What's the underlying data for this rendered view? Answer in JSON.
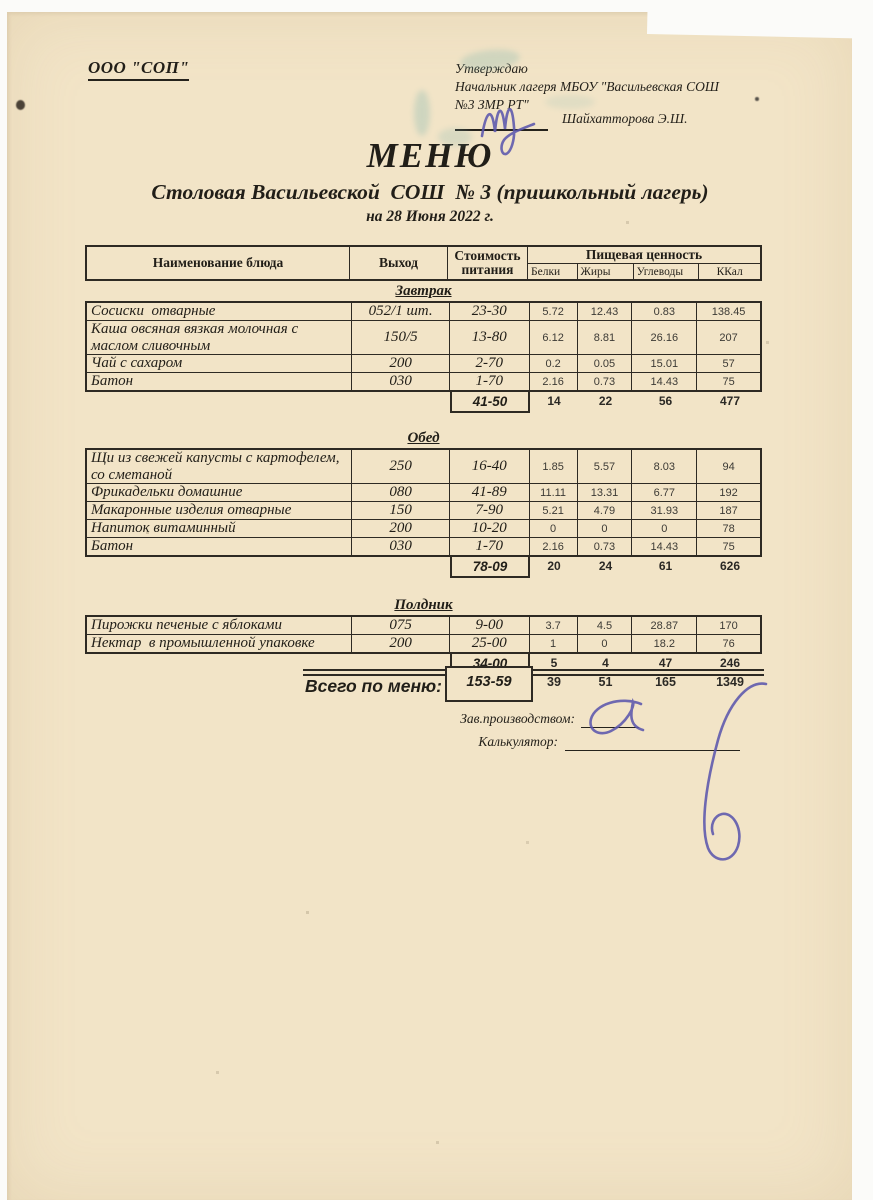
{
  "document": {
    "org_name": "ООО \"СОП\"",
    "approval": {
      "approve_word": "Утверждаю",
      "approver_line1": "Начальник лагеря МБОУ \"Васильевская СОШ",
      "approver_line2": "№3 ЗМР РТ\"",
      "approver_name": "Шайхатторова Э.Ш."
    },
    "title": "МЕНЮ",
    "subtitle": "Столовая Васильевской  СОШ  № 3 (пришкольный лагерь)",
    "date_line": "на 28 Июня 2022 г.",
    "footer": {
      "production_manager_label": "Зав.производством:",
      "calculator_label": "Калькулятор:"
    }
  },
  "menu_table": {
    "columns": {
      "dish": "Наименование блюда",
      "output": "Выход",
      "cost_line1": "Стоимость",
      "cost_line2": "питания",
      "nutrition_group": "Пищевая ценность",
      "protein": "Белки",
      "fat": "Жиры",
      "carbs": "Углеводы",
      "kcal": "ККал"
    },
    "sections": [
      {
        "name": "Завтрак",
        "rows": [
          {
            "dish": "Сосиски  отварные",
            "output": "052/1 шт.",
            "cost": "23-30",
            "protein": "5.72",
            "fat": "12.43",
            "carbs": "0.83",
            "kcal": "138.45"
          },
          {
            "dish": "Каша овсяная вязкая молочная с маслом сливочным",
            "output": "150/5",
            "cost": "13-80",
            "protein": "6.12",
            "fat": "8.81",
            "carbs": "26.16",
            "kcal": "207"
          },
          {
            "dish": "Чай с сахаром",
            "output": "200",
            "cost": "2-70",
            "protein": "0.2",
            "fat": "0.05",
            "carbs": "15.01",
            "kcal": "57"
          },
          {
            "dish": "Батон",
            "output": "030",
            "cost": "1-70",
            "protein": "2.16",
            "fat": "0.73",
            "carbs": "14.43",
            "kcal": "75"
          }
        ],
        "totals": {
          "cost": "41-50",
          "protein": "14",
          "fat": "22",
          "carbs": "56",
          "kcal": "477"
        }
      },
      {
        "name": "Обед",
        "rows": [
          {
            "dish": "Щи из свежей капусты с картофелем, со сметаной",
            "output": "250",
            "cost": "16-40",
            "protein": "1.85",
            "fat": "5.57",
            "carbs": "8.03",
            "kcal": "94"
          },
          {
            "dish": "Фрикадельки домашние",
            "output": "080",
            "cost": "41-89",
            "protein": "11.11",
            "fat": "13.31",
            "carbs": "6.77",
            "kcal": "192"
          },
          {
            "dish": "Макаронные изделия отварные",
            "output": "150",
            "cost": "7-90",
            "protein": "5.21",
            "fat": "4.79",
            "carbs": "31.93",
            "kcal": "187"
          },
          {
            "dish": "Напиток витаминный",
            "output": "200",
            "cost": "10-20",
            "protein": "0",
            "fat": "0",
            "carbs": "0",
            "kcal": "78"
          },
          {
            "dish": "Батон",
            "output": "030",
            "cost": "1-70",
            "protein": "2.16",
            "fat": "0.73",
            "carbs": "14.43",
            "kcal": "75"
          }
        ],
        "totals": {
          "cost": "78-09",
          "protein": "20",
          "fat": "24",
          "carbs": "61",
          "kcal": "626"
        }
      },
      {
        "name": "Полдник",
        "rows": [
          {
            "dish": "Пирожки печеные с яблоками",
            "output": "075",
            "cost": "9-00",
            "protein": "3.7",
            "fat": "4.5",
            "carbs": "28.87",
            "kcal": "170"
          },
          {
            "dish": "Нектар  в промышленной упаковке",
            "output": "200",
            "cost": "25-00",
            "protein": "1",
            "fat": "0",
            "carbs": "18.2",
            "kcal": "76"
          }
        ],
        "totals": {
          "cost": "34-00",
          "protein": "5",
          "fat": "4",
          "carbs": "47",
          "kcal": "246"
        }
      }
    ],
    "grand_total": {
      "label": "Всего по меню:",
      "cost": "153-59",
      "protein": "39",
      "fat": "51",
      "carbs": "165",
      "kcal": "1349"
    }
  },
  "colors": {
    "paper": "#f2e4c7",
    "ink_lines": "#2e2a23",
    "pen_ink": "#5b56ad",
    "stamp": "#7fb5ae"
  }
}
